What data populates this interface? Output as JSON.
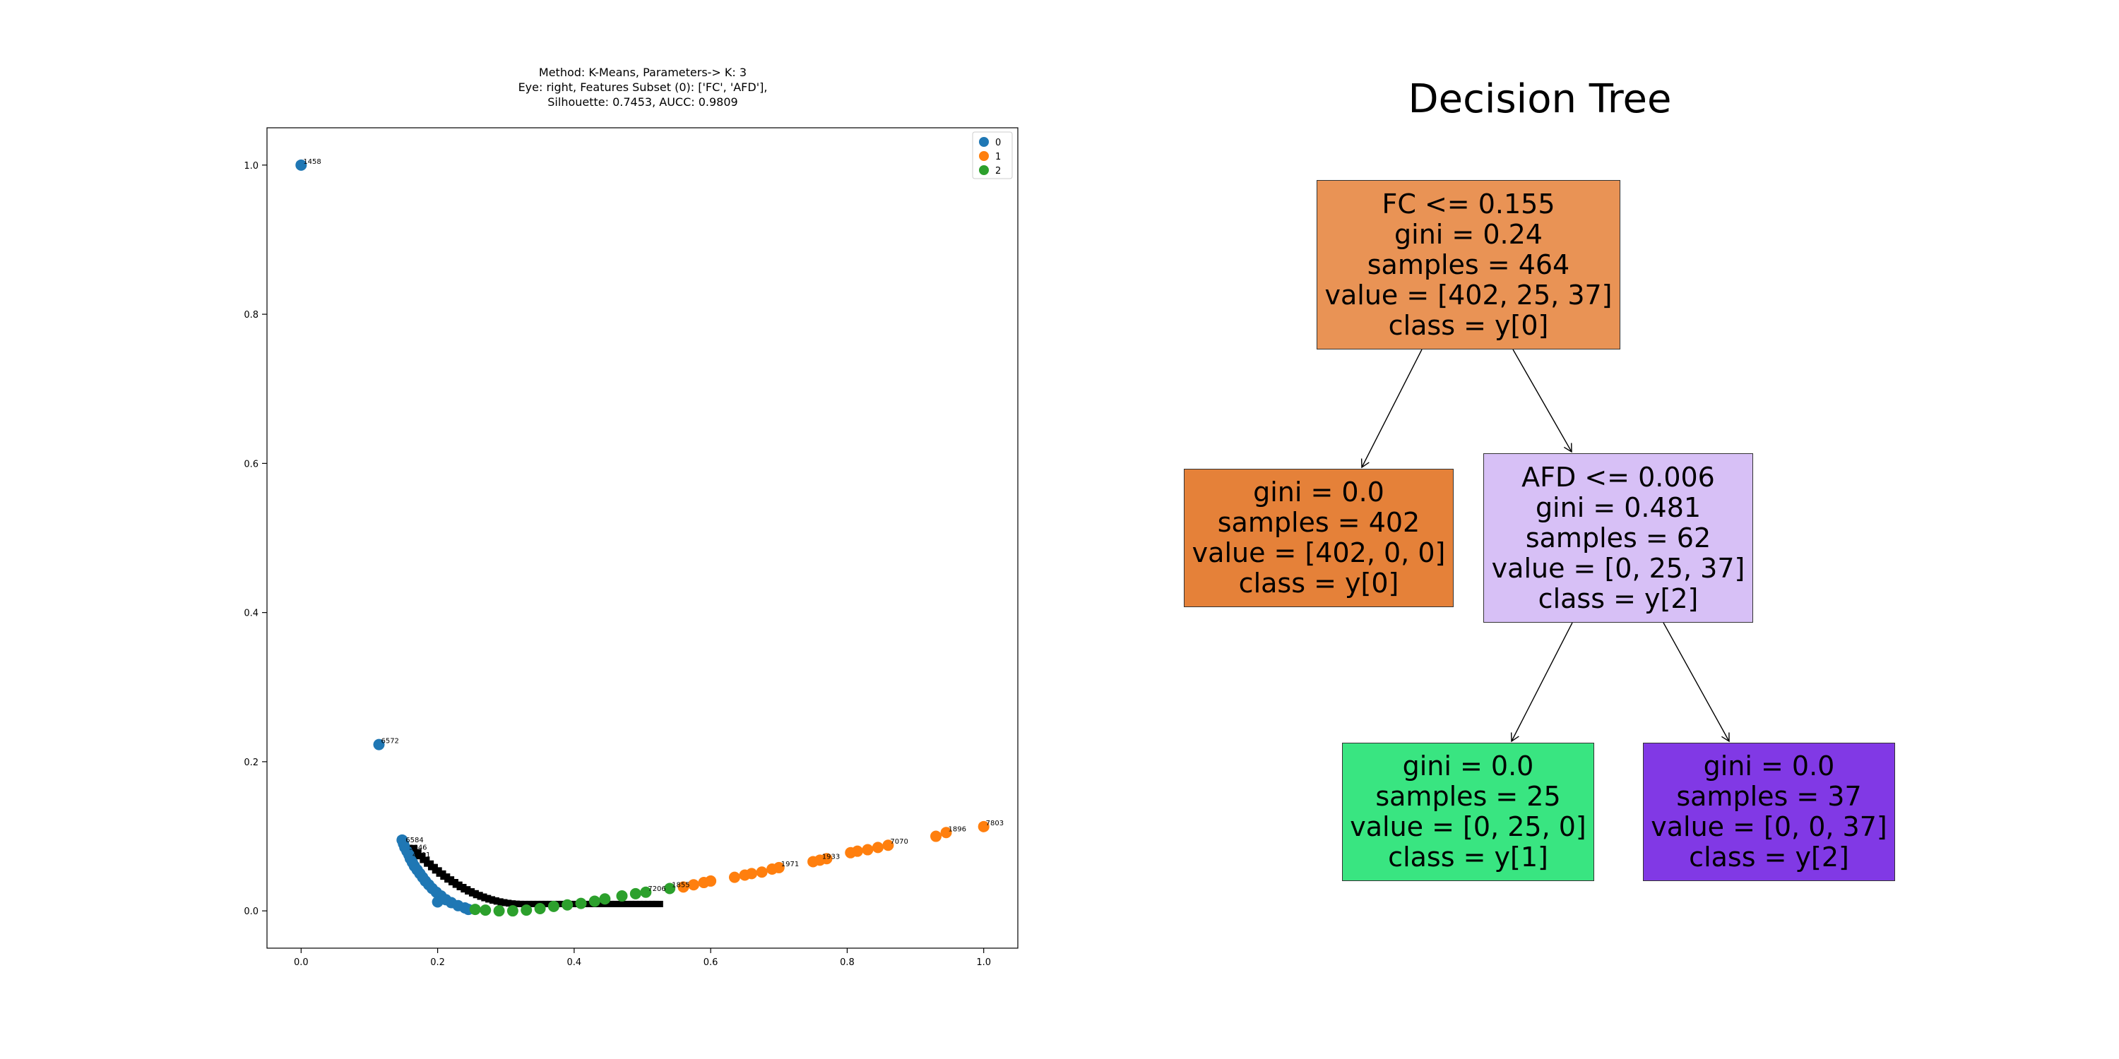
{
  "chart_data": [
    {
      "type": "scatter",
      "title_lines": [
        "Method: K-Means, Parameters-> K: 3",
        "Eye: right, Features Subset (0): ['FC', 'AFD'],",
        "Silhouette: 0.7453, AUCC: 0.9809"
      ],
      "xlim": [
        -0.05,
        1.05
      ],
      "ylim": [
        -0.05,
        1.05
      ],
      "xticks": [
        "0.0",
        "0.2",
        "0.4",
        "0.6",
        "0.8",
        "1.0"
      ],
      "yticks": [
        "0.0",
        "0.2",
        "0.4",
        "0.6",
        "0.8",
        "1.0"
      ],
      "grid": false,
      "legend": {
        "placement": "top-right",
        "entries": [
          "0",
          "1",
          "2"
        ]
      },
      "colors": {
        "0": "#1f77b4",
        "1": "#ff7f0e",
        "2": "#2ca02c",
        "label": "#000000"
      },
      "series": [
        {
          "name": "0",
          "points": [
            [
              0.0,
              1.0
            ],
            [
              0.114,
              0.223
            ],
            [
              0.148,
              0.095
            ],
            [
              0.15,
              0.09
            ],
            [
              0.152,
              0.085
            ],
            [
              0.155,
              0.08
            ],
            [
              0.158,
              0.075
            ],
            [
              0.16,
              0.07
            ],
            [
              0.163,
              0.065
            ],
            [
              0.166,
              0.06
            ],
            [
              0.17,
              0.055
            ],
            [
              0.174,
              0.05
            ],
            [
              0.178,
              0.045
            ],
            [
              0.182,
              0.04
            ],
            [
              0.187,
              0.035
            ],
            [
              0.192,
              0.03
            ],
            [
              0.198,
              0.025
            ],
            [
              0.205,
              0.02
            ],
            [
              0.2,
              0.012
            ],
            [
              0.212,
              0.015
            ],
            [
              0.22,
              0.011
            ],
            [
              0.23,
              0.007
            ],
            [
              0.24,
              0.004
            ],
            [
              0.245,
              0.002
            ]
          ],
          "labels": [
            {
              "x": 0.0,
              "y": 1.0,
              "text": "1458"
            },
            {
              "x": 0.114,
              "y": 0.223,
              "text": "6572"
            },
            {
              "x": 0.15,
              "y": 0.09,
              "text": "6584"
            },
            {
              "x": 0.155,
              "y": 0.08,
              "text": "5046"
            },
            {
              "x": 0.16,
              "y": 0.07,
              "text": "4701"
            }
          ]
        },
        {
          "name": "1",
          "points": [
            [
              0.56,
              0.032
            ],
            [
              0.575,
              0.035
            ],
            [
              0.59,
              0.038
            ],
            [
              0.6,
              0.04
            ],
            [
              0.635,
              0.045
            ],
            [
              0.65,
              0.048
            ],
            [
              0.66,
              0.05
            ],
            [
              0.675,
              0.052
            ],
            [
              0.69,
              0.056
            ],
            [
              0.7,
              0.058
            ],
            [
              0.75,
              0.066
            ],
            [
              0.76,
              0.068
            ],
            [
              0.77,
              0.07
            ],
            [
              0.805,
              0.078
            ],
            [
              0.815,
              0.08
            ],
            [
              0.83,
              0.082
            ],
            [
              0.845,
              0.085
            ],
            [
              0.86,
              0.088
            ],
            [
              0.93,
              0.1
            ],
            [
              0.945,
              0.105
            ],
            [
              1.0,
              0.113
            ]
          ],
          "labels": [
            {
              "x": 0.7,
              "y": 0.058,
              "text": "1971"
            },
            {
              "x": 0.76,
              "y": 0.068,
              "text": "1933"
            },
            {
              "x": 0.86,
              "y": 0.088,
              "text": "7070"
            },
            {
              "x": 0.945,
              "y": 0.105,
              "text": "1896"
            },
            {
              "x": 1.0,
              "y": 0.113,
              "text": "7803"
            }
          ]
        },
        {
          "name": "2",
          "points": [
            [
              0.255,
              0.002
            ],
            [
              0.27,
              0.001
            ],
            [
              0.29,
              0.0
            ],
            [
              0.31,
              0.0
            ],
            [
              0.33,
              0.001
            ],
            [
              0.35,
              0.003
            ],
            [
              0.37,
              0.006
            ],
            [
              0.39,
              0.008
            ],
            [
              0.41,
              0.01
            ],
            [
              0.43,
              0.013
            ],
            [
              0.445,
              0.016
            ],
            [
              0.47,
              0.02
            ],
            [
              0.49,
              0.023
            ],
            [
              0.505,
              0.025
            ],
            [
              0.54,
              0.03
            ]
          ],
          "labels": [
            {
              "x": 0.505,
              "y": 0.025,
              "text": "7206"
            },
            {
              "x": 0.54,
              "y": 0.03,
              "text": "1855"
            }
          ]
        }
      ]
    },
    {
      "type": "decision-tree",
      "title": "Decision Tree",
      "colors": {
        "root": "#e99355",
        "leaf0": "#e58139",
        "split": "#d7c0f6",
        "leaf1": "#39e581",
        "leaf2": "#8139e5",
        "edge": "#000000"
      },
      "nodes": [
        {
          "id": "root",
          "lines": [
            "FC <= 0.155",
            "gini = 0.24",
            "samples = 464",
            "value = [402, 25, 37]",
            "class = y[0]"
          ]
        },
        {
          "id": "leaf0",
          "lines": [
            "gini = 0.0",
            "samples = 402",
            "value = [402, 0, 0]",
            "class = y[0]"
          ]
        },
        {
          "id": "split",
          "lines": [
            "AFD <= 0.006",
            "gini = 0.481",
            "samples = 62",
            "value = [0, 25, 37]",
            "class = y[2]"
          ]
        },
        {
          "id": "leaf1",
          "lines": [
            "gini = 0.0",
            "samples = 25",
            "value = [0, 25, 0]",
            "class = y[1]"
          ]
        },
        {
          "id": "leaf2",
          "lines": [
            "gini = 0.0",
            "samples = 37",
            "value = [0, 0, 37]",
            "class = y[2]"
          ]
        }
      ]
    }
  ]
}
